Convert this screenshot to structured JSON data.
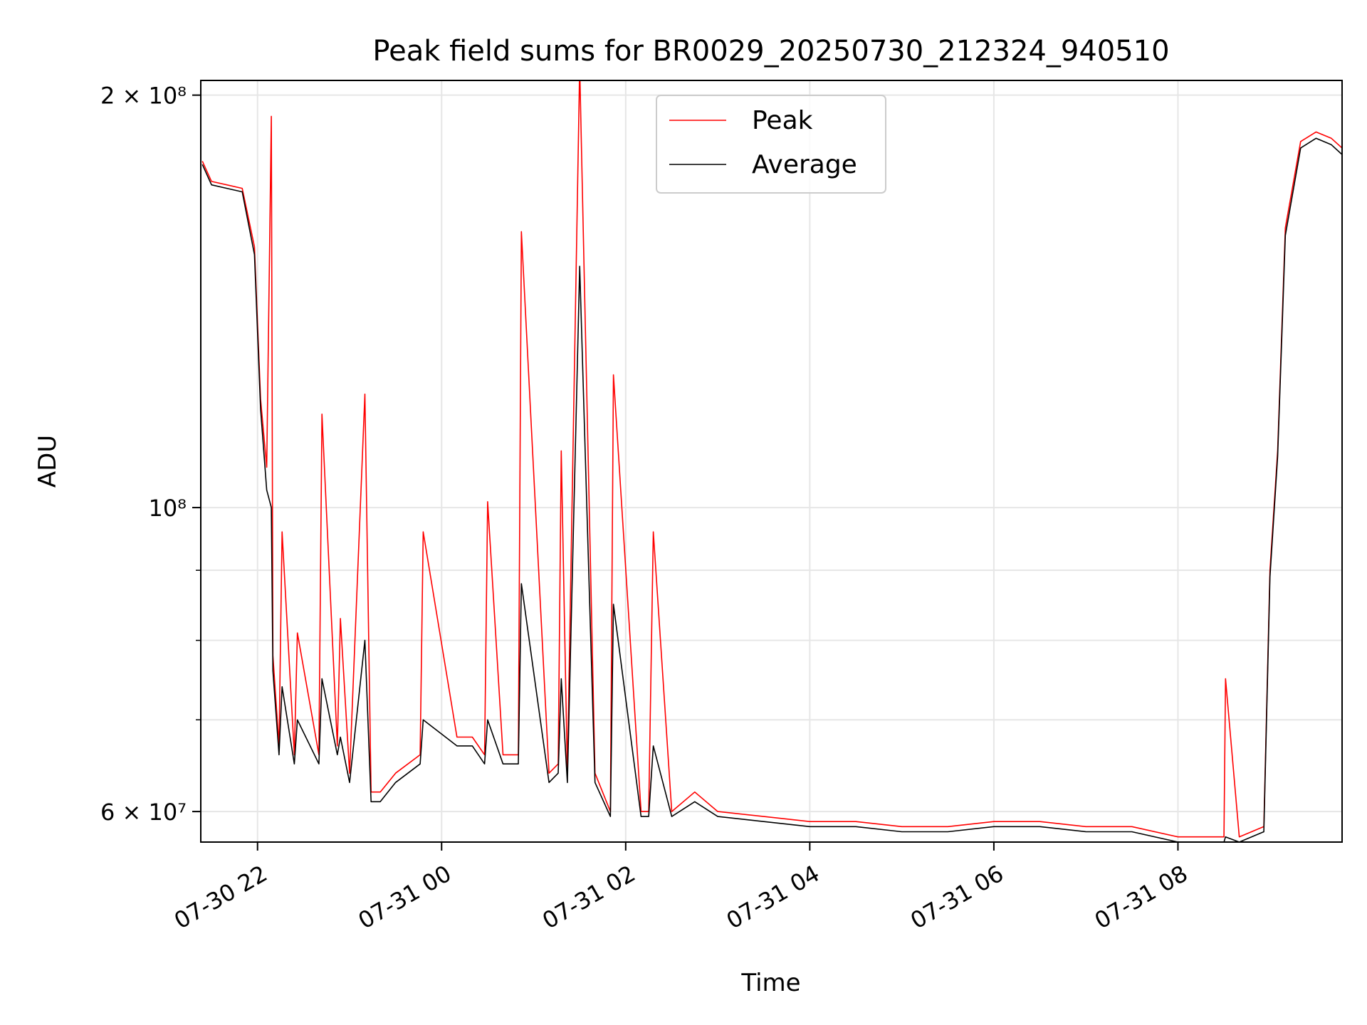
{
  "chart_data": {
    "type": "line",
    "title": "Peak field sums for BR0029_20250730_212324_940510",
    "xlabel": "Time",
    "ylabel": "ADU",
    "yscale": "log",
    "grid": true,
    "legend_position": "upper center",
    "xlim": [
      "2025-07-30 21:23",
      "2025-07-31 09:47"
    ],
    "ylim": [
      57000000,
      205000000
    ],
    "x_ticks": [
      {
        "value": "2025-07-30 22:00",
        "label": "07-30 22"
      },
      {
        "value": "2025-07-31 00:00",
        "label": "07-31 00"
      },
      {
        "value": "2025-07-31 02:00",
        "label": "07-31 02"
      },
      {
        "value": "2025-07-31 04:00",
        "label": "07-31 04"
      },
      {
        "value": "2025-07-31 06:00",
        "label": "07-31 06"
      },
      {
        "value": "2025-07-31 08:00",
        "label": "07-31 08"
      }
    ],
    "y_ticks_major": [
      {
        "value": 60000000,
        "label": "6 × 10⁷",
        "mantissa": "6",
        "exponent": "7"
      },
      {
        "value": 100000000,
        "label": "10⁸",
        "mantissa": "",
        "exponent": "8"
      },
      {
        "value": 200000000,
        "label": "2 × 10⁸",
        "mantissa": "2",
        "exponent": "8"
      }
    ],
    "y_ticks_minor": [
      70000000,
      80000000,
      90000000
    ],
    "series": [
      {
        "name": "Peak",
        "color": "#ff0000",
        "x": [
          "2025-07-30 21:24",
          "2025-07-30 21:30",
          "2025-07-30 21:40",
          "2025-07-30 21:50",
          "2025-07-30 21:58",
          "2025-07-30 22:02",
          "2025-07-30 22:06",
          "2025-07-30 22:09",
          "2025-07-30 22:10",
          "2025-07-30 22:14",
          "2025-07-30 22:16",
          "2025-07-30 22:24",
          "2025-07-30 22:26",
          "2025-07-30 22:40",
          "2025-07-30 22:42",
          "2025-07-30 22:52",
          "2025-07-30 22:54",
          "2025-07-30 23:00",
          "2025-07-30 23:10",
          "2025-07-30 23:14",
          "2025-07-30 23:20",
          "2025-07-30 23:30",
          "2025-07-30 23:46",
          "2025-07-30 23:48",
          "2025-07-31 00:10",
          "2025-07-31 00:20",
          "2025-07-31 00:28",
          "2025-07-31 00:30",
          "2025-07-31 00:40",
          "2025-07-31 00:50",
          "2025-07-31 00:52",
          "2025-07-31 01:10",
          "2025-07-31 01:16",
          "2025-07-31 01:18",
          "2025-07-31 01:22",
          "2025-07-31 01:30",
          "2025-07-31 01:40",
          "2025-07-31 01:50",
          "2025-07-31 01:52",
          "2025-07-31 02:10",
          "2025-07-31 02:15",
          "2025-07-31 02:18",
          "2025-07-31 02:30",
          "2025-07-31 02:45",
          "2025-07-31 03:00",
          "2025-07-31 03:30",
          "2025-07-31 04:00",
          "2025-07-31 04:30",
          "2025-07-31 05:00",
          "2025-07-31 05:30",
          "2025-07-31 06:00",
          "2025-07-31 06:30",
          "2025-07-31 07:00",
          "2025-07-31 07:30",
          "2025-07-31 08:00",
          "2025-07-31 08:30",
          "2025-07-31 08:31",
          "2025-07-31 08:40",
          "2025-07-31 08:56",
          "2025-07-31 09:00",
          "2025-07-31 09:05",
          "2025-07-31 09:10",
          "2025-07-31 09:20",
          "2025-07-31 09:30",
          "2025-07-31 09:40",
          "2025-07-31 09:47"
        ],
        "y": [
          179000000,
          173000000,
          172000000,
          171000000,
          155000000,
          120000000,
          107000000,
          193000000,
          78000000,
          67000000,
          96000000,
          66000000,
          81000000,
          66000000,
          117000000,
          67000000,
          83000000,
          64000000,
          121000000,
          62000000,
          62000000,
          64000000,
          66000000,
          96000000,
          68000000,
          68000000,
          66000000,
          101000000,
          66000000,
          66000000,
          159000000,
          64000000,
          65000000,
          110000000,
          64000000,
          210000000,
          64000000,
          60000000,
          125000000,
          60000000,
          60000000,
          96000000,
          60000000,
          62000000,
          60000000,
          59500000,
          59000000,
          59000000,
          58500000,
          58500000,
          59000000,
          59000000,
          58500000,
          58500000,
          57500000,
          57500000,
          75000000,
          57500000,
          58500000,
          90000000,
          110000000,
          160000000,
          185000000,
          188000000,
          186000000,
          183000000
        ]
      },
      {
        "name": "Average",
        "color": "#000000",
        "x": [
          "2025-07-30 21:24",
          "2025-07-30 21:30",
          "2025-07-30 21:40",
          "2025-07-30 21:50",
          "2025-07-30 21:58",
          "2025-07-30 22:02",
          "2025-07-30 22:06",
          "2025-07-30 22:09",
          "2025-07-30 22:10",
          "2025-07-30 22:14",
          "2025-07-30 22:16",
          "2025-07-30 22:24",
          "2025-07-30 22:26",
          "2025-07-30 22:40",
          "2025-07-30 22:42",
          "2025-07-30 22:52",
          "2025-07-30 22:54",
          "2025-07-30 23:00",
          "2025-07-30 23:10",
          "2025-07-30 23:14",
          "2025-07-30 23:20",
          "2025-07-30 23:30",
          "2025-07-30 23:46",
          "2025-07-30 23:48",
          "2025-07-31 00:10",
          "2025-07-31 00:20",
          "2025-07-31 00:28",
          "2025-07-31 00:30",
          "2025-07-31 00:40",
          "2025-07-31 00:50",
          "2025-07-31 00:52",
          "2025-07-31 01:10",
          "2025-07-31 01:16",
          "2025-07-31 01:18",
          "2025-07-31 01:22",
          "2025-07-31 01:30",
          "2025-07-31 01:40",
          "2025-07-31 01:50",
          "2025-07-31 01:52",
          "2025-07-31 02:10",
          "2025-07-31 02:15",
          "2025-07-31 02:18",
          "2025-07-31 02:30",
          "2025-07-31 02:45",
          "2025-07-31 03:00",
          "2025-07-31 03:30",
          "2025-07-31 04:00",
          "2025-07-31 04:30",
          "2025-07-31 05:00",
          "2025-07-31 05:30",
          "2025-07-31 06:00",
          "2025-07-31 06:30",
          "2025-07-31 07:00",
          "2025-07-31 07:30",
          "2025-07-31 08:00",
          "2025-07-31 08:30",
          "2025-07-31 08:31",
          "2025-07-31 08:40",
          "2025-07-31 08:56",
          "2025-07-31 09:00",
          "2025-07-31 09:05",
          "2025-07-31 09:10",
          "2025-07-31 09:20",
          "2025-07-31 09:30",
          "2025-07-31 09:40",
          "2025-07-31 09:47"
        ],
        "y": [
          178000000,
          172000000,
          171000000,
          170000000,
          153000000,
          118000000,
          103000000,
          100000000,
          76000000,
          66000000,
          74000000,
          65000000,
          70000000,
          65000000,
          75000000,
          66000000,
          68000000,
          63000000,
          80000000,
          61000000,
          61000000,
          63000000,
          65000000,
          70000000,
          67000000,
          67000000,
          65000000,
          70000000,
          65000000,
          65000000,
          88000000,
          63000000,
          64000000,
          75000000,
          63000000,
          150000000,
          63000000,
          59500000,
          85000000,
          59500000,
          59500000,
          67000000,
          59500000,
          61000000,
          59500000,
          59000000,
          58500000,
          58500000,
          58000000,
          58000000,
          58500000,
          58500000,
          58000000,
          58000000,
          57000000,
          57000000,
          57500000,
          57000000,
          58000000,
          89000000,
          109000000,
          158000000,
          183000000,
          186000000,
          184000000,
          181000000
        ]
      }
    ]
  }
}
